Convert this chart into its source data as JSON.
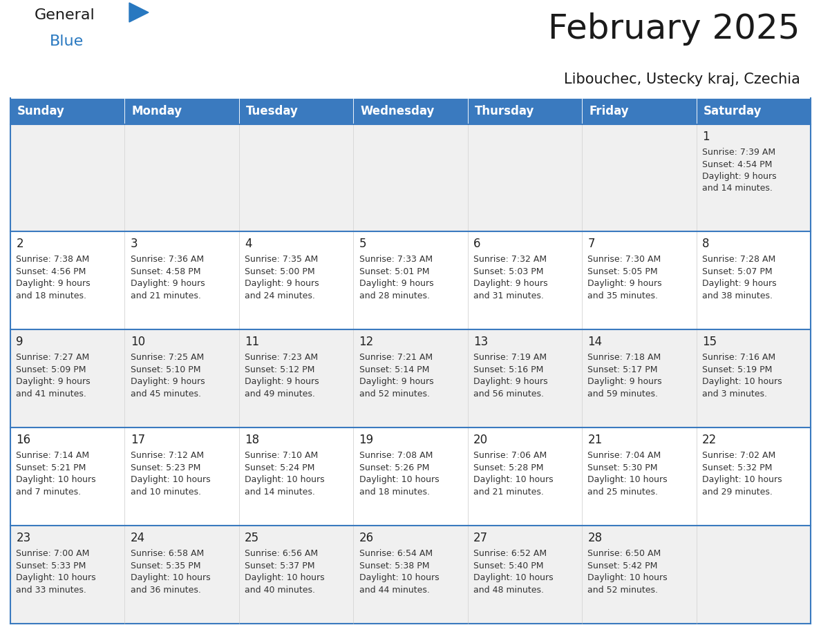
{
  "title": "February 2025",
  "subtitle": "Libouchec, Ustecky kraj, Czechia",
  "days_of_week": [
    "Sunday",
    "Monday",
    "Tuesday",
    "Wednesday",
    "Thursday",
    "Friday",
    "Saturday"
  ],
  "header_bg": "#3a7abf",
  "header_text": "#ffffff",
  "row_bg_even": "#f0f0f0",
  "row_bg_odd": "#ffffff",
  "cell_text_color": "#333333",
  "date_text_color": "#222222",
  "border_color": "#3a7abf",
  "sep_line_color": "#3a7abf",
  "calendar_data": [
    [
      null,
      null,
      null,
      null,
      null,
      null,
      {
        "day": "1",
        "sunrise": "7:39 AM",
        "sunset": "4:54 PM",
        "daylight_h": "9 hours",
        "daylight_m": "14 minutes."
      }
    ],
    [
      {
        "day": "2",
        "sunrise": "7:38 AM",
        "sunset": "4:56 PM",
        "daylight_h": "9 hours",
        "daylight_m": "18 minutes."
      },
      {
        "day": "3",
        "sunrise": "7:36 AM",
        "sunset": "4:58 PM",
        "daylight_h": "9 hours",
        "daylight_m": "21 minutes."
      },
      {
        "day": "4",
        "sunrise": "7:35 AM",
        "sunset": "5:00 PM",
        "daylight_h": "9 hours",
        "daylight_m": "24 minutes."
      },
      {
        "day": "5",
        "sunrise": "7:33 AM",
        "sunset": "5:01 PM",
        "daylight_h": "9 hours",
        "daylight_m": "28 minutes."
      },
      {
        "day": "6",
        "sunrise": "7:32 AM",
        "sunset": "5:03 PM",
        "daylight_h": "9 hours",
        "daylight_m": "31 minutes."
      },
      {
        "day": "7",
        "sunrise": "7:30 AM",
        "sunset": "5:05 PM",
        "daylight_h": "9 hours",
        "daylight_m": "35 minutes."
      },
      {
        "day": "8",
        "sunrise": "7:28 AM",
        "sunset": "5:07 PM",
        "daylight_h": "9 hours",
        "daylight_m": "38 minutes."
      }
    ],
    [
      {
        "day": "9",
        "sunrise": "7:27 AM",
        "sunset": "5:09 PM",
        "daylight_h": "9 hours",
        "daylight_m": "41 minutes."
      },
      {
        "day": "10",
        "sunrise": "7:25 AM",
        "sunset": "5:10 PM",
        "daylight_h": "9 hours",
        "daylight_m": "45 minutes."
      },
      {
        "day": "11",
        "sunrise": "7:23 AM",
        "sunset": "5:12 PM",
        "daylight_h": "9 hours",
        "daylight_m": "49 minutes."
      },
      {
        "day": "12",
        "sunrise": "7:21 AM",
        "sunset": "5:14 PM",
        "daylight_h": "9 hours",
        "daylight_m": "52 minutes."
      },
      {
        "day": "13",
        "sunrise": "7:19 AM",
        "sunset": "5:16 PM",
        "daylight_h": "9 hours",
        "daylight_m": "56 minutes."
      },
      {
        "day": "14",
        "sunrise": "7:18 AM",
        "sunset": "5:17 PM",
        "daylight_h": "9 hours",
        "daylight_m": "59 minutes."
      },
      {
        "day": "15",
        "sunrise": "7:16 AM",
        "sunset": "5:19 PM",
        "daylight_h": "10 hours",
        "daylight_m": "3 minutes."
      }
    ],
    [
      {
        "day": "16",
        "sunrise": "7:14 AM",
        "sunset": "5:21 PM",
        "daylight_h": "10 hours",
        "daylight_m": "7 minutes."
      },
      {
        "day": "17",
        "sunrise": "7:12 AM",
        "sunset": "5:23 PM",
        "daylight_h": "10 hours",
        "daylight_m": "10 minutes."
      },
      {
        "day": "18",
        "sunrise": "7:10 AM",
        "sunset": "5:24 PM",
        "daylight_h": "10 hours",
        "daylight_m": "14 minutes."
      },
      {
        "day": "19",
        "sunrise": "7:08 AM",
        "sunset": "5:26 PM",
        "daylight_h": "10 hours",
        "daylight_m": "18 minutes."
      },
      {
        "day": "20",
        "sunrise": "7:06 AM",
        "sunset": "5:28 PM",
        "daylight_h": "10 hours",
        "daylight_m": "21 minutes."
      },
      {
        "day": "21",
        "sunrise": "7:04 AM",
        "sunset": "5:30 PM",
        "daylight_h": "10 hours",
        "daylight_m": "25 minutes."
      },
      {
        "day": "22",
        "sunrise": "7:02 AM",
        "sunset": "5:32 PM",
        "daylight_h": "10 hours",
        "daylight_m": "29 minutes."
      }
    ],
    [
      {
        "day": "23",
        "sunrise": "7:00 AM",
        "sunset": "5:33 PM",
        "daylight_h": "10 hours",
        "daylight_m": "33 minutes."
      },
      {
        "day": "24",
        "sunrise": "6:58 AM",
        "sunset": "5:35 PM",
        "daylight_h": "10 hours",
        "daylight_m": "36 minutes."
      },
      {
        "day": "25",
        "sunrise": "6:56 AM",
        "sunset": "5:37 PM",
        "daylight_h": "10 hours",
        "daylight_m": "40 minutes."
      },
      {
        "day": "26",
        "sunrise": "6:54 AM",
        "sunset": "5:38 PM",
        "daylight_h": "10 hours",
        "daylight_m": "44 minutes."
      },
      {
        "day": "27",
        "sunrise": "6:52 AM",
        "sunset": "5:40 PM",
        "daylight_h": "10 hours",
        "daylight_m": "48 minutes."
      },
      {
        "day": "28",
        "sunrise": "6:50 AM",
        "sunset": "5:42 PM",
        "daylight_h": "10 hours",
        "daylight_m": "52 minutes."
      },
      null
    ]
  ],
  "logo_general_color": "#1a1a1a",
  "logo_blue_color": "#2878c0",
  "logo_triangle_color": "#2878c0",
  "title_color": "#1a1a1a",
  "subtitle_color": "#1a1a1a"
}
